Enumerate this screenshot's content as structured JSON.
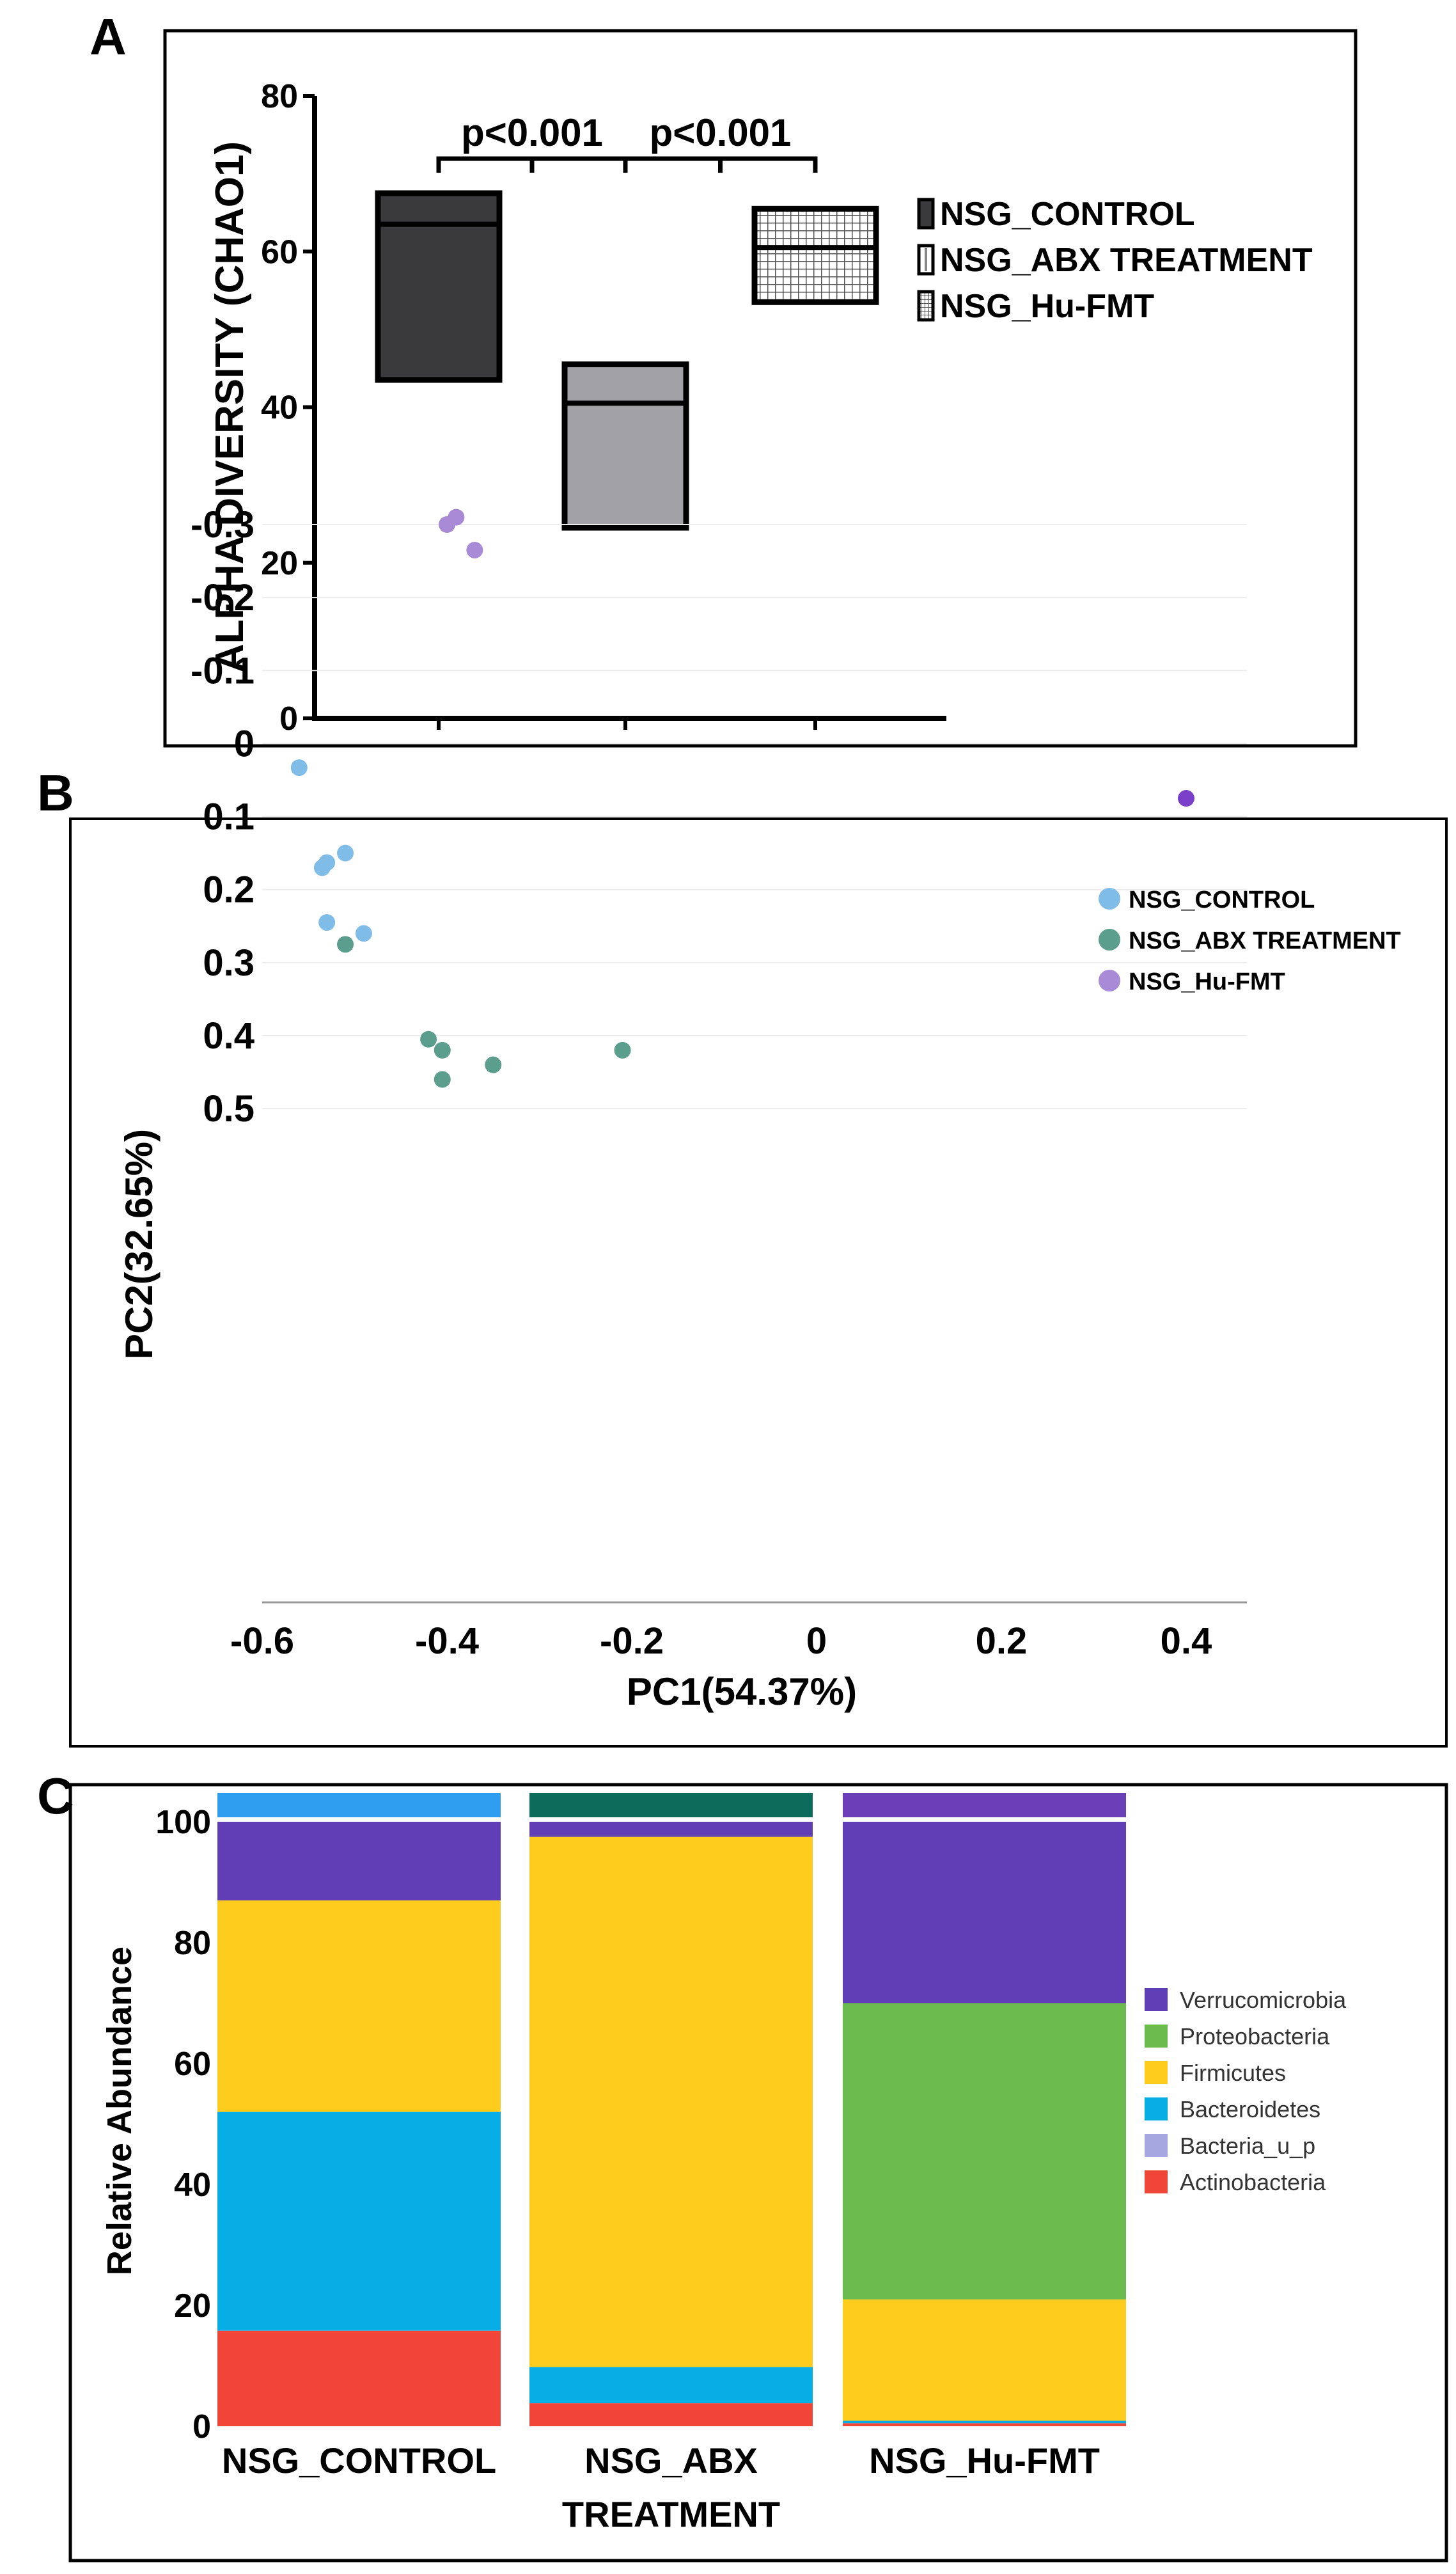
{
  "panels": {
    "a": "A",
    "b": "B",
    "c": "C"
  },
  "chart_data": [
    {
      "type": "box",
      "panel": "A",
      "ylabel": "ALPHA DIVERSITY (CHAO1)",
      "ylim": [
        0,
        80
      ],
      "yticks": [
        0,
        20,
        40,
        60,
        80
      ],
      "groups": [
        {
          "name": "NSG_CONTROL",
          "min": 43.5,
          "median": 63.5,
          "max": 67.5,
          "fill": "#3a3a3c",
          "pattern": "solid"
        },
        {
          "name": "NSG_ABX TREATMENT",
          "min": 24.5,
          "median": 40.5,
          "max": 45.5,
          "fill": "#a2a2a6",
          "pattern": "solid"
        },
        {
          "name": "NSG_Hu-FMT",
          "min": 53.5,
          "median": 60.5,
          "max": 65.5,
          "fill": "#ffffff",
          "pattern": "grid"
        }
      ],
      "annotations": [
        {
          "text": "p<0.001",
          "from": 0,
          "to": 1
        },
        {
          "text": "p<0.001",
          "from": 1,
          "to": 2
        }
      ],
      "legend": [
        "NSG_CONTROL",
        "NSG_ABX TREATMENT",
        "NSG_Hu-FMT"
      ]
    },
    {
      "type": "scatter",
      "panel": "B",
      "xlabel": "PC1(54.37%)",
      "ylabel": "PC2(32.65%)",
      "xlim": [
        -0.65,
        0.47
      ],
      "ylim": [
        -0.36,
        0.5
      ],
      "xticks": [
        -0.6,
        -0.4,
        -0.2,
        0,
        0.2,
        0.4
      ],
      "xtick_labels": [
        "-0.6",
        "-0.4",
        "-0.2",
        "0",
        "0.2",
        "0.4"
      ],
      "yticks": [
        0.5,
        0.4,
        0.3,
        0.2,
        0.1,
        0,
        -0.1,
        -0.2,
        -0.3
      ],
      "ytick_labels": [
        "0.5",
        "0.4",
        "0.3",
        "0.2",
        "0.1",
        "0",
        "-0.1",
        "-0.2",
        "-0.3"
      ],
      "series": [
        {
          "name": "NSG_CONTROL",
          "color": "#7fbde8",
          "points": [
            [
              -0.53,
              0.245
            ],
            [
              -0.49,
              0.26
            ],
            [
              -0.535,
              0.17
            ],
            [
              -0.53,
              0.163
            ],
            [
              -0.51,
              0.15
            ],
            [
              -0.56,
              0.033
            ]
          ]
        },
        {
          "name": "NSG_ABX TREATMENT",
          "color": "#5c9e8e",
          "points": [
            [
              -0.405,
              0.46
            ],
            [
              -0.35,
              0.44
            ],
            [
              -0.405,
              0.42
            ],
            [
              -0.42,
              0.405
            ],
            [
              -0.21,
              0.42
            ],
            [
              -0.51,
              0.275
            ]
          ]
        },
        {
          "name": "NSG_Hu-FMT",
          "color": "#a98ad6",
          "points": [
            [
              -0.37,
              -0.265
            ],
            [
              -0.4,
              -0.3
            ],
            [
              -0.39,
              -0.31
            ],
            [
              0.4,
              0.075
            ]
          ]
        }
      ],
      "highlight_color": "#7a3fc8"
    },
    {
      "type": "bar",
      "stacked": true,
      "panel": "C",
      "ylabel": "Relative Abundance",
      "ylim": [
        0,
        100
      ],
      "yticks": [
        0,
        20,
        40,
        60,
        80,
        100
      ],
      "categories": [
        "NSG_CONTROL",
        "NSG_ABX TREATMENT",
        "NSG_Hu-FMT"
      ],
      "category_lines": [
        [
          "NSG_CONTROL"
        ],
        [
          "NSG_ABX",
          "TREATMENT"
        ],
        [
          "NSG_Hu-FMT"
        ]
      ],
      "header_colors": [
        "#2e9ef0",
        "#0d6b5b",
        "#6a3fb8"
      ],
      "series": [
        {
          "name": "Actinobacteria",
          "color": "#f04538",
          "values": [
            15.8,
            3.8,
            0.5
          ]
        },
        {
          "name": "Bacteria_u_p",
          "color": "#a6a7e0",
          "values": [
            0,
            0,
            0
          ]
        },
        {
          "name": "Bacteroidetes",
          "color": "#06aee5",
          "values": [
            36.2,
            6.0,
            0.4
          ]
        },
        {
          "name": "Firmicutes",
          "color": "#fdcc1c",
          "values": [
            35.0,
            87.7,
            20.1
          ]
        },
        {
          "name": "Proteobacteria",
          "color": "#6bba4d",
          "values": [
            0,
            0,
            49.0
          ]
        },
        {
          "name": "Verrucomicrobia",
          "color": "#5f3eb6",
          "values": [
            13.0,
            2.5,
            30.0
          ]
        }
      ],
      "legend": [
        "Verrucomicrobia",
        "Proteobacteria",
        "Firmicutes",
        "Bacteroidetes",
        "Bacteria_u_p",
        "Actinobacteria"
      ]
    }
  ]
}
